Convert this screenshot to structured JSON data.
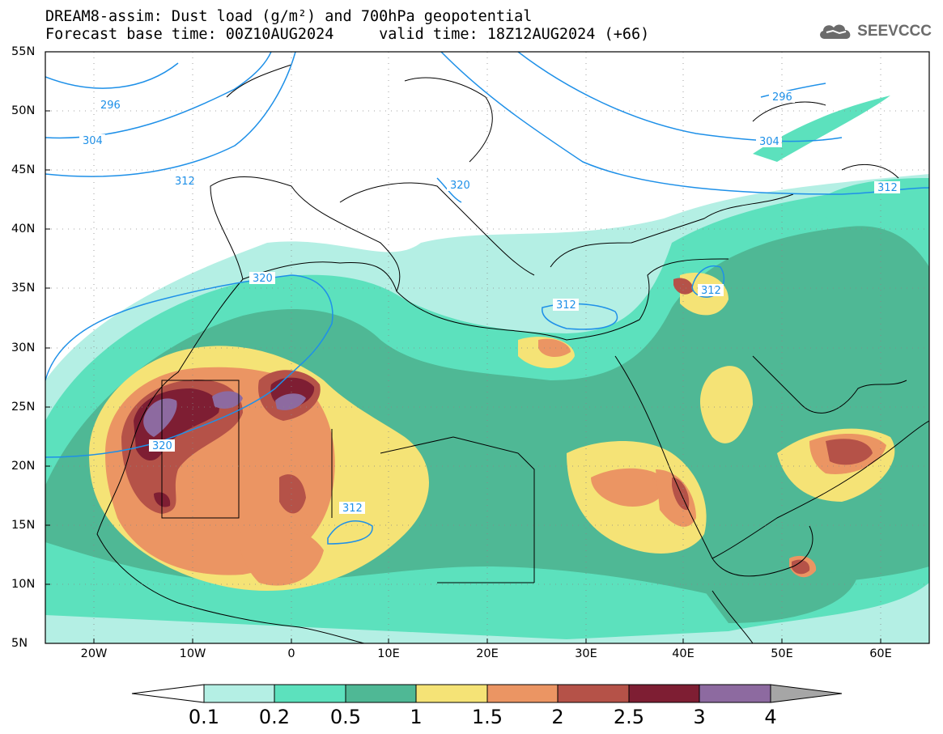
{
  "header": {
    "title_line1": "DREAM8-assim: Dust load (g/m²) and 700hPa geopotential",
    "title_line2": "Forecast base time: 00Z10AUG2024     valid time: 18Z12AUG2024 (+66)",
    "logo_text": "SEEVCCC",
    "logo_icon": "cloud-icon"
  },
  "map": {
    "lat_labels": [
      "55N",
      "50N",
      "45N",
      "40N",
      "35N",
      "30N",
      "25N",
      "20N",
      "15N",
      "10N",
      "5N"
    ],
    "lon_labels": [
      "20W",
      "10W",
      "0",
      "10E",
      "20E",
      "30E",
      "40E",
      "50E",
      "60E"
    ],
    "contour_labels": [
      "296",
      "304",
      "312",
      "320",
      "296",
      "304",
      "312",
      "312",
      "312",
      "320",
      "312",
      "320"
    ]
  },
  "colorbar": {
    "labels": [
      "0.1",
      "0.2",
      "0.5",
      "1",
      "1.5",
      "2",
      "2.5",
      "3",
      "4"
    ],
    "colors": [
      "#ffffff",
      "#b4efe4",
      "#5ce1bd",
      "#4fb895",
      "#f5e376",
      "#eb9563",
      "#b55248",
      "#7e1e33",
      "#8d6aa0",
      "#a6a6a6"
    ]
  },
  "legend_colors": {
    "contour": "#1e90e8",
    "coast": "#000000"
  }
}
